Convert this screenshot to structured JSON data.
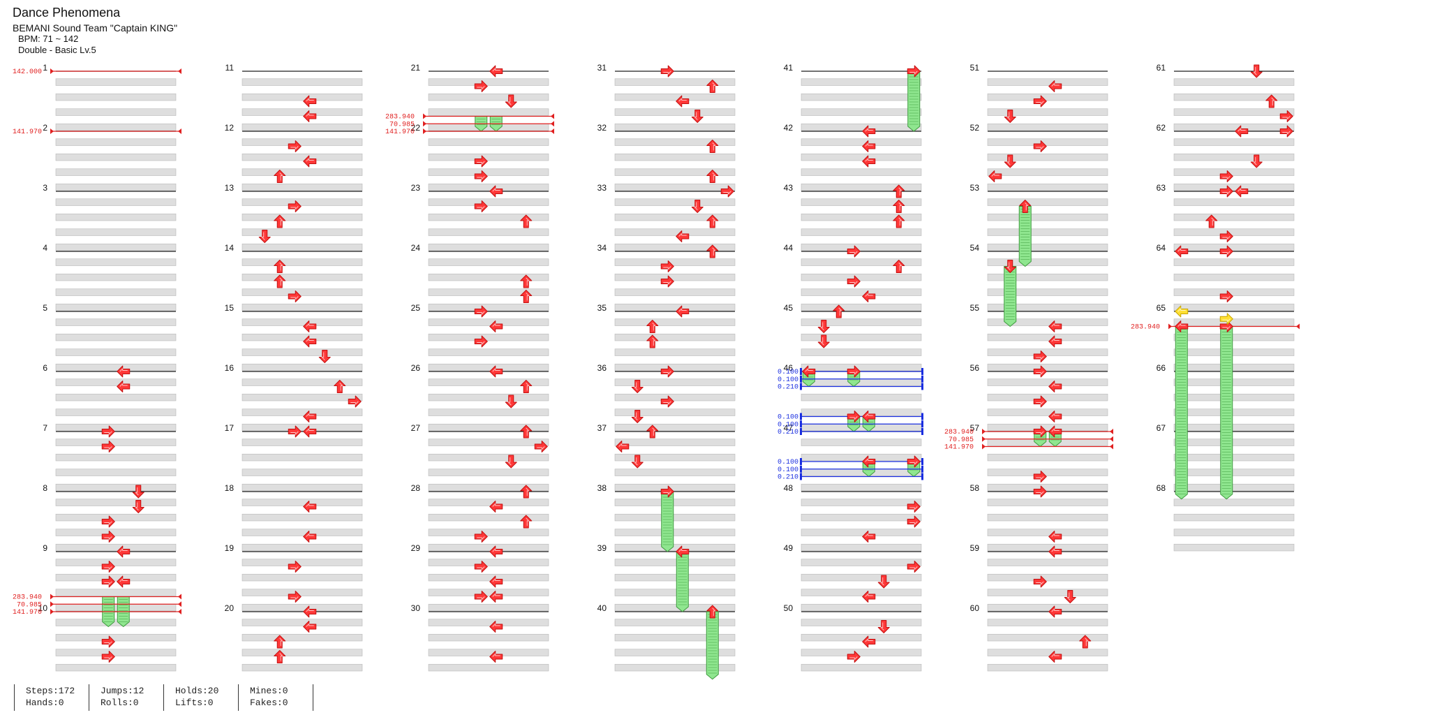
{
  "song": {
    "title": "Dance Phenomena",
    "artist": "BEMANI Sound Team \"Captain KING\"",
    "bpm": "BPM: 71 ~ 142",
    "difficulty": "Double - Basic Lv.5"
  },
  "stats": {
    "steps": "Steps:172",
    "hands": "Hands:0",
    "jumps": "Jumps:12",
    "rolls": "Rolls:0",
    "holds": "Holds:20",
    "lifts": "Lifts:0",
    "mines": "Mines:0",
    "fakes": "Fakes:0"
  },
  "colors": {
    "arrow": "#ff3838",
    "freeze": "#8fe68f",
    "bpm_change": "#e02020",
    "stop": "#1a2ee0",
    "highlight_arrow": "#ffe033",
    "lane_band": "#dedede",
    "measure_line": "#1e1e1e"
  },
  "chart": {
    "total_measures": 68,
    "measures_per_column": 10,
    "arrow_icon": "arrow-icon",
    "freeze_icon": "freeze-arrow-icon",
    "bpm_changes": [
      {
        "measure": 1,
        "label": "142.000"
      },
      {
        "measure": 2,
        "label": "141.970"
      },
      {
        "measure": 9.75,
        "label": "283.940"
      },
      {
        "measure": 9.875,
        "label": "70.985"
      },
      {
        "measure": 10,
        "label": "141.970"
      },
      {
        "measure": 21.75,
        "label": "283.940"
      },
      {
        "measure": 21.875,
        "label": "70.985"
      },
      {
        "measure": 22,
        "label": "141.970"
      },
      {
        "measure": 57,
        "label": "283.940"
      },
      {
        "measure": 57.125,
        "label": "70.985"
      },
      {
        "measure": 57.25,
        "label": "141.970"
      },
      {
        "measure": 65.25,
        "label": "283.940"
      }
    ],
    "stops": [
      {
        "measure": 46,
        "label": "0.100"
      },
      {
        "measure": 46.125,
        "label": "0.100"
      },
      {
        "measure": 46.25,
        "label": "0.210"
      },
      {
        "measure": 46.75,
        "label": "0.100"
      },
      {
        "measure": 46.875,
        "label": "0.100"
      },
      {
        "measure": 47,
        "label": "0.210"
      },
      {
        "measure": 47.5,
        "label": "0.100"
      },
      {
        "measure": 47.625,
        "label": "0.100"
      },
      {
        "measure": 47.75,
        "label": "0.210"
      }
    ],
    "freezes": [
      {
        "measure": 9.75,
        "lane": 3,
        "length": 0.5
      },
      {
        "measure": 9.75,
        "lane": 4,
        "length": 0.5
      },
      {
        "measure": 21.75,
        "lane": 3,
        "length": 0.25
      },
      {
        "measure": 21.75,
        "lane": 4,
        "length": 0.25
      },
      {
        "measure": 38,
        "lane": 3,
        "length": 1.0
      },
      {
        "measure": 39,
        "lane": 4,
        "length": 1.0
      },
      {
        "measure": 40,
        "lane": 6,
        "length": 1.125
      },
      {
        "measure": 41,
        "lane": 7,
        "length": 1.0
      },
      {
        "measure": 46,
        "lane": 0,
        "length": 0.25
      },
      {
        "measure": 46,
        "lane": 3,
        "length": 0.25
      },
      {
        "measure": 46.75,
        "lane": 3,
        "length": 0.25
      },
      {
        "measure": 46.75,
        "lane": 4,
        "length": 0.25
      },
      {
        "measure": 47.5,
        "lane": 4,
        "length": 0.25
      },
      {
        "measure": 47.5,
        "lane": 7,
        "length": 0.25
      },
      {
        "measure": 53.25,
        "lane": 2,
        "length": 1.0
      },
      {
        "measure": 54.25,
        "lane": 1,
        "length": 1.0
      },
      {
        "measure": 57,
        "lane": 3,
        "length": 0.25
      },
      {
        "measure": 57,
        "lane": 4,
        "length": 0.25
      },
      {
        "measure": 65.25,
        "lane": 0,
        "length": 2.875
      },
      {
        "measure": 65.25,
        "lane": 3,
        "length": 2.875
      }
    ],
    "highlighted_notes": [
      {
        "measure": 65,
        "lane": 0,
        "dir": "left"
      },
      {
        "measure": 65.125,
        "lane": 3,
        "dir": "right"
      }
    ],
    "notes": [
      {
        "measure": 6,
        "lane": 4,
        "dir": "left"
      },
      {
        "measure": 6.25,
        "lane": 4,
        "dir": "left"
      },
      {
        "measure": 7,
        "lane": 3,
        "dir": "right"
      },
      {
        "measure": 7.25,
        "lane": 3,
        "dir": "right"
      },
      {
        "measure": 8,
        "lane": 5,
        "dir": "down"
      },
      {
        "measure": 8.25,
        "lane": 5,
        "dir": "down"
      },
      {
        "measure": 8.5,
        "lane": 3,
        "dir": "right"
      },
      {
        "measure": 8.75,
        "lane": 3,
        "dir": "right"
      },
      {
        "measure": 9,
        "lane": 4,
        "dir": "left"
      },
      {
        "measure": 9.25,
        "lane": 3,
        "dir": "right"
      },
      {
        "measure": 9.5,
        "lane": 3,
        "dir": "right"
      },
      {
        "measure": 9.5,
        "lane": 4,
        "dir": "left"
      },
      {
        "measure": 10.5,
        "lane": 3,
        "dir": "right"
      },
      {
        "measure": 10.75,
        "lane": 3,
        "dir": "right"
      },
      {
        "measure": 11.5,
        "lane": 4,
        "dir": "left"
      },
      {
        "measure": 11.75,
        "lane": 4,
        "dir": "left"
      },
      {
        "measure": 12.25,
        "lane": 3,
        "dir": "right"
      },
      {
        "measure": 12.5,
        "lane": 4,
        "dir": "left"
      },
      {
        "measure": 12.75,
        "lane": 2,
        "dir": "up"
      },
      {
        "measure": 13.25,
        "lane": 3,
        "dir": "right"
      },
      {
        "measure": 13.5,
        "lane": 2,
        "dir": "up"
      },
      {
        "measure": 13.75,
        "lane": 1,
        "dir": "down"
      },
      {
        "measure": 14.25,
        "lane": 2,
        "dir": "up"
      },
      {
        "measure": 14.5,
        "lane": 2,
        "dir": "up"
      },
      {
        "measure": 14.75,
        "lane": 3,
        "dir": "right"
      },
      {
        "measure": 15.25,
        "lane": 4,
        "dir": "left"
      },
      {
        "measure": 15.5,
        "lane": 4,
        "dir": "left"
      },
      {
        "measure": 15.75,
        "lane": 5,
        "dir": "down"
      },
      {
        "measure": 16.25,
        "lane": 6,
        "dir": "up"
      },
      {
        "measure": 16.5,
        "lane": 7,
        "dir": "right"
      },
      {
        "measure": 16.75,
        "lane": 4,
        "dir": "left"
      },
      {
        "measure": 17,
        "lane": 3,
        "dir": "right"
      },
      {
        "measure": 17,
        "lane": 4,
        "dir": "left"
      },
      {
        "measure": 18.25,
        "lane": 4,
        "dir": "left"
      },
      {
        "measure": 18.75,
        "lane": 4,
        "dir": "left"
      },
      {
        "measure": 19.25,
        "lane": 3,
        "dir": "right"
      },
      {
        "measure": 19.75,
        "lane": 3,
        "dir": "right"
      },
      {
        "measure": 20,
        "lane": 4,
        "dir": "left"
      },
      {
        "measure": 20.25,
        "lane": 4,
        "dir": "left"
      },
      {
        "measure": 20.5,
        "lane": 2,
        "dir": "up"
      },
      {
        "measure": 20.75,
        "lane": 2,
        "dir": "up"
      },
      {
        "measure": 21,
        "lane": 4,
        "dir": "left"
      },
      {
        "measure": 21.25,
        "lane": 3,
        "dir": "right"
      },
      {
        "measure": 21.5,
        "lane": 5,
        "dir": "down"
      },
      {
        "measure": 22.5,
        "lane": 3,
        "dir": "right"
      },
      {
        "measure": 22.75,
        "lane": 3,
        "dir": "right"
      },
      {
        "measure": 23,
        "lane": 4,
        "dir": "left"
      },
      {
        "measure": 23.25,
        "lane": 3,
        "dir": "right"
      },
      {
        "measure": 23.5,
        "lane": 6,
        "dir": "up"
      },
      {
        "measure": 24.5,
        "lane": 6,
        "dir": "up"
      },
      {
        "measure": 24.75,
        "lane": 6,
        "dir": "up"
      },
      {
        "measure": 25,
        "lane": 3,
        "dir": "right"
      },
      {
        "measure": 25.25,
        "lane": 4,
        "dir": "left"
      },
      {
        "measure": 25.5,
        "lane": 3,
        "dir": "right"
      },
      {
        "measure": 26,
        "lane": 4,
        "dir": "left"
      },
      {
        "measure": 26.25,
        "lane": 6,
        "dir": "up"
      },
      {
        "measure": 26.5,
        "lane": 5,
        "dir": "down"
      },
      {
        "measure": 27,
        "lane": 6,
        "dir": "up"
      },
      {
        "measure": 27.25,
        "lane": 7,
        "dir": "right"
      },
      {
        "measure": 27.5,
        "lane": 5,
        "dir": "down"
      },
      {
        "measure": 28,
        "lane": 6,
        "dir": "up"
      },
      {
        "measure": 28.25,
        "lane": 4,
        "dir": "left"
      },
      {
        "measure": 28.5,
        "lane": 6,
        "dir": "up"
      },
      {
        "measure": 28.75,
        "lane": 3,
        "dir": "right"
      },
      {
        "measure": 29,
        "lane": 4,
        "dir": "left"
      },
      {
        "measure": 29.25,
        "lane": 3,
        "dir": "right"
      },
      {
        "measure": 29.5,
        "lane": 4,
        "dir": "left"
      },
      {
        "measure": 29.75,
        "lane": 3,
        "dir": "right"
      },
      {
        "measure": 29.75,
        "lane": 4,
        "dir": "left"
      },
      {
        "measure": 30.25,
        "lane": 4,
        "dir": "left"
      },
      {
        "measure": 30.75,
        "lane": 4,
        "dir": "left"
      },
      {
        "measure": 31,
        "lane": 3,
        "dir": "right"
      },
      {
        "measure": 31.25,
        "lane": 6,
        "dir": "up"
      },
      {
        "measure": 31.5,
        "lane": 4,
        "dir": "left"
      },
      {
        "measure": 31.75,
        "lane": 5,
        "dir": "down"
      },
      {
        "measure": 32.25,
        "lane": 6,
        "dir": "up"
      },
      {
        "measure": 32.75,
        "lane": 6,
        "dir": "up"
      },
      {
        "measure": 33,
        "lane": 7,
        "dir": "right"
      },
      {
        "measure": 33.25,
        "lane": 5,
        "dir": "down"
      },
      {
        "measure": 33.5,
        "lane": 6,
        "dir": "up"
      },
      {
        "measure": 33.75,
        "lane": 4,
        "dir": "left"
      },
      {
        "measure": 34,
        "lane": 6,
        "dir": "up"
      },
      {
        "measure": 34.25,
        "lane": 3,
        "dir": "right"
      },
      {
        "measure": 34.5,
        "lane": 3,
        "dir": "right"
      },
      {
        "measure": 35,
        "lane": 4,
        "dir": "left"
      },
      {
        "measure": 35.25,
        "lane": 2,
        "dir": "up"
      },
      {
        "measure": 35.5,
        "lane": 2,
        "dir": "up"
      },
      {
        "measure": 36,
        "lane": 3,
        "dir": "right"
      },
      {
        "measure": 36.25,
        "lane": 1,
        "dir": "down"
      },
      {
        "measure": 36.5,
        "lane": 3,
        "dir": "right"
      },
      {
        "measure": 36.75,
        "lane": 1,
        "dir": "down"
      },
      {
        "measure": 37,
        "lane": 2,
        "dir": "up"
      },
      {
        "measure": 37.25,
        "lane": 0,
        "dir": "left"
      },
      {
        "measure": 37.5,
        "lane": 1,
        "dir": "down"
      },
      {
        "measure": 38,
        "lane": 3,
        "dir": "right"
      },
      {
        "measure": 39,
        "lane": 4,
        "dir": "left"
      },
      {
        "measure": 40,
        "lane": 6,
        "dir": "up"
      },
      {
        "measure": 41,
        "lane": 7,
        "dir": "right"
      },
      {
        "measure": 42,
        "lane": 4,
        "dir": "left"
      },
      {
        "measure": 42.25,
        "lane": 4,
        "dir": "left"
      },
      {
        "measure": 42.5,
        "lane": 4,
        "dir": "left"
      },
      {
        "measure": 43,
        "lane": 6,
        "dir": "up"
      },
      {
        "measure": 43.25,
        "lane": 6,
        "dir": "up"
      },
      {
        "measure": 43.5,
        "lane": 6,
        "dir": "up"
      },
      {
        "measure": 44,
        "lane": 3,
        "dir": "right"
      },
      {
        "measure": 44.25,
        "lane": 6,
        "dir": "up"
      },
      {
        "measure": 44.5,
        "lane": 3,
        "dir": "right"
      },
      {
        "measure": 44.75,
        "lane": 4,
        "dir": "left"
      },
      {
        "measure": 45,
        "lane": 2,
        "dir": "up"
      },
      {
        "measure": 45.25,
        "lane": 1,
        "dir": "down"
      },
      {
        "measure": 45.5,
        "lane": 1,
        "dir": "down"
      },
      {
        "measure": 46,
        "lane": 0,
        "dir": "left"
      },
      {
        "measure": 46,
        "lane": 3,
        "dir": "right"
      },
      {
        "measure": 46.75,
        "lane": 3,
        "dir": "right"
      },
      {
        "measure": 46.75,
        "lane": 4,
        "dir": "left"
      },
      {
        "measure": 47.5,
        "lane": 4,
        "dir": "left"
      },
      {
        "measure": 47.5,
        "lane": 7,
        "dir": "right"
      },
      {
        "measure": 48.25,
        "lane": 7,
        "dir": "right"
      },
      {
        "measure": 48.5,
        "lane": 7,
        "dir": "right"
      },
      {
        "measure": 48.75,
        "lane": 4,
        "dir": "left"
      },
      {
        "measure": 49.25,
        "lane": 7,
        "dir": "right"
      },
      {
        "measure": 49.5,
        "lane": 5,
        "dir": "down"
      },
      {
        "measure": 49.75,
        "lane": 4,
        "dir": "left"
      },
      {
        "measure": 50.25,
        "lane": 5,
        "dir": "down"
      },
      {
        "measure": 50.5,
        "lane": 4,
        "dir": "left"
      },
      {
        "measure": 50.75,
        "lane": 3,
        "dir": "right"
      },
      {
        "measure": 51.25,
        "lane": 4,
        "dir": "left"
      },
      {
        "measure": 51.5,
        "lane": 3,
        "dir": "right"
      },
      {
        "measure": 51.75,
        "lane": 1,
        "dir": "down"
      },
      {
        "measure": 52.25,
        "lane": 3,
        "dir": "right"
      },
      {
        "measure": 52.5,
        "lane": 1,
        "dir": "down"
      },
      {
        "measure": 52.75,
        "lane": 0,
        "dir": "left"
      },
      {
        "measure": 53.25,
        "lane": 2,
        "dir": "up"
      },
      {
        "measure": 54.25,
        "lane": 1,
        "dir": "down"
      },
      {
        "measure": 55.25,
        "lane": 4,
        "dir": "left"
      },
      {
        "measure": 55.5,
        "lane": 4,
        "dir": "left"
      },
      {
        "measure": 55.75,
        "lane": 3,
        "dir": "right"
      },
      {
        "measure": 56,
        "lane": 3,
        "dir": "right"
      },
      {
        "measure": 56.25,
        "lane": 4,
        "dir": "left"
      },
      {
        "measure": 56.5,
        "lane": 3,
        "dir": "right"
      },
      {
        "measure": 56.75,
        "lane": 4,
        "dir": "left"
      },
      {
        "measure": 57,
        "lane": 3,
        "dir": "right"
      },
      {
        "measure": 57,
        "lane": 4,
        "dir": "left"
      },
      {
        "measure": 57.75,
        "lane": 3,
        "dir": "right"
      },
      {
        "measure": 58,
        "lane": 3,
        "dir": "right"
      },
      {
        "measure": 58.75,
        "lane": 4,
        "dir": "left"
      },
      {
        "measure": 59,
        "lane": 4,
        "dir": "left"
      },
      {
        "measure": 59.5,
        "lane": 3,
        "dir": "right"
      },
      {
        "measure": 59.75,
        "lane": 5,
        "dir": "down"
      },
      {
        "measure": 60,
        "lane": 4,
        "dir": "left"
      },
      {
        "measure": 60.5,
        "lane": 6,
        "dir": "up"
      },
      {
        "measure": 60.75,
        "lane": 4,
        "dir": "left"
      },
      {
        "measure": 61,
        "lane": 5,
        "dir": "down"
      },
      {
        "measure": 61.5,
        "lane": 6,
        "dir": "up"
      },
      {
        "measure": 61.75,
        "lane": 7,
        "dir": "right"
      },
      {
        "measure": 62,
        "lane": 4,
        "dir": "left"
      },
      {
        "measure": 62,
        "lane": 7,
        "dir": "right"
      },
      {
        "measure": 62.5,
        "lane": 5,
        "dir": "down"
      },
      {
        "measure": 62.75,
        "lane": 3,
        "dir": "right"
      },
      {
        "measure": 63,
        "lane": 3,
        "dir": "right"
      },
      {
        "measure": 63,
        "lane": 4,
        "dir": "left"
      },
      {
        "measure": 63.5,
        "lane": 2,
        "dir": "up"
      },
      {
        "measure": 63.75,
        "lane": 3,
        "dir": "right"
      },
      {
        "measure": 64,
        "lane": 0,
        "dir": "left"
      },
      {
        "measure": 64,
        "lane": 3,
        "dir": "right"
      },
      {
        "measure": 64.75,
        "lane": 3,
        "dir": "right"
      },
      {
        "measure": 65.25,
        "lane": 0,
        "dir": "left"
      },
      {
        "measure": 65.25,
        "lane": 3,
        "dir": "right"
      }
    ]
  }
}
